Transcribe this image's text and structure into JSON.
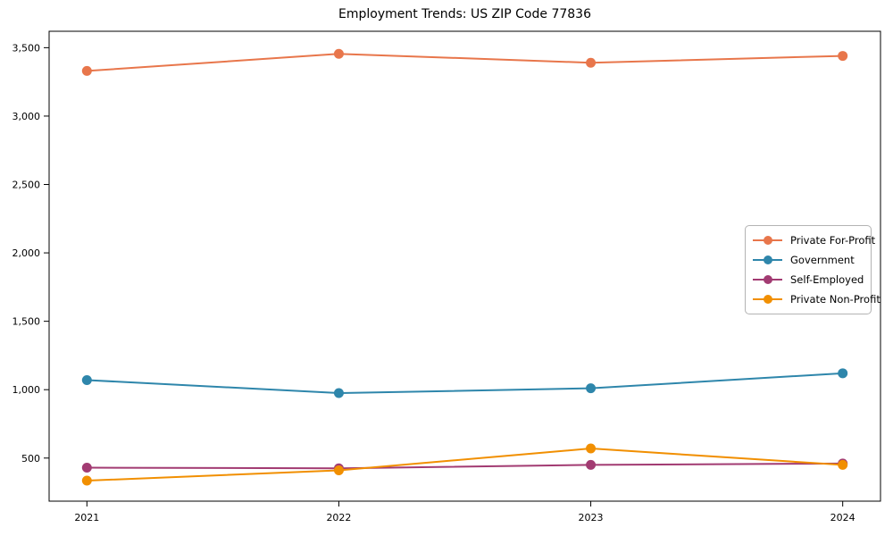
{
  "chart_data": {
    "type": "line",
    "title": "Employment Trends: US ZIP Code 77836",
    "x": [
      2021,
      2022,
      2023,
      2024
    ],
    "x_tick_labels": [
      "2021",
      "2022",
      "2023",
      "2024"
    ],
    "y_ticks": [
      500,
      1000,
      1500,
      2000,
      2500,
      3000,
      3500
    ],
    "y_tick_labels": [
      "500",
      "1,000",
      "1,500",
      "2,000",
      "2,500",
      "3,000",
      "3,500"
    ],
    "xlim": [
      2020.85,
      2024.15
    ],
    "ylim": [
      185,
      3620
    ],
    "grid": false,
    "legend_position": "center-right",
    "axis_color": "#000000",
    "series": [
      {
        "name": "Private For-Profit",
        "color": "#E8764B",
        "values": [
          3330,
          3455,
          3390,
          3440
        ]
      },
      {
        "name": "Government",
        "color": "#2E86AB",
        "values": [
          1070,
          975,
          1010,
          1120
        ]
      },
      {
        "name": "Self-Employed",
        "color": "#A23B72",
        "values": [
          430,
          425,
          450,
          460
        ]
      },
      {
        "name": "Private Non-Profit",
        "color": "#F18F01",
        "values": [
          335,
          410,
          570,
          450
        ]
      }
    ]
  }
}
